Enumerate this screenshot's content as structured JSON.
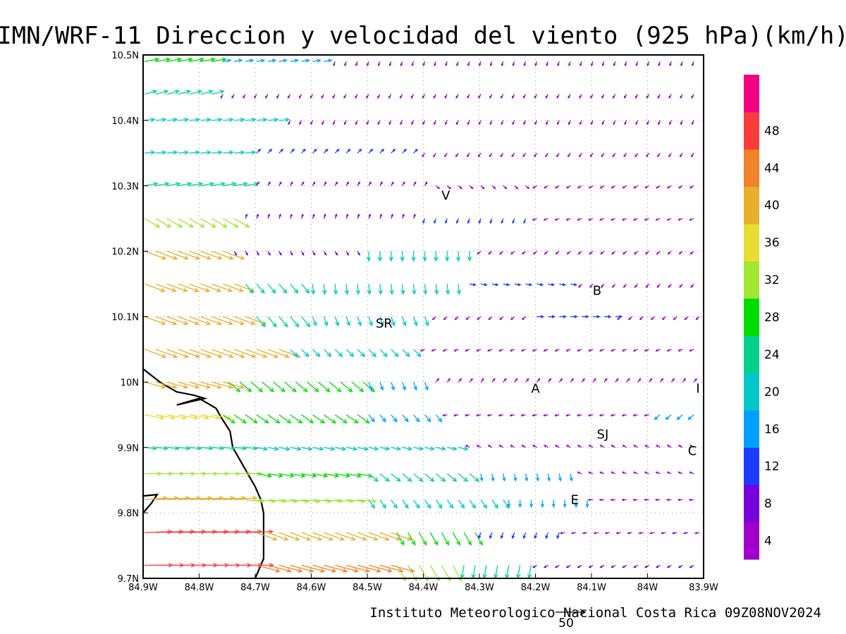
{
  "chart_data": {
    "type": "vector-field-map",
    "title": "IMN/WRF-11 Direccion y velocidad del viento (925 hPa)(km/h)",
    "credit": "Instituto Meteorologico Nacional Costa Rica 09Z08NOV2024",
    "reference_vector_label": "50",
    "reference_vector_kmh": 50,
    "lon_range": [
      -84.9,
      -83.9
    ],
    "lat_range": [
      9.7,
      10.5
    ],
    "x_ticks": [
      "84.9W",
      "84.8W",
      "84.7W",
      "84.6W",
      "84.5W",
      "84.4W",
      "84.3W",
      "84.2W",
      "84.1W",
      "84W",
      "83.9W"
    ],
    "y_ticks": [
      "9.7N",
      "9.8N",
      "9.9N",
      "10N",
      "10.1N",
      "10.2N",
      "10.3N",
      "10.4N",
      "10.5N"
    ],
    "grid": true,
    "colorbar": {
      "levels": [
        4,
        8,
        12,
        16,
        20,
        24,
        28,
        32,
        36,
        40,
        44,
        48
      ],
      "colors": [
        "#a000c8",
        "#7800dc",
        "#1e3cff",
        "#00a0ff",
        "#00c8c8",
        "#00d28c",
        "#00dc00",
        "#a0e632",
        "#e6dc32",
        "#e6af2d",
        "#f08228",
        "#fa3c3c",
        "#f00082"
      ]
    },
    "cities": [
      {
        "label": "V",
        "lon": -84.36,
        "lat": 10.285
      },
      {
        "label": "SR",
        "lon": -84.47,
        "lat": 10.09
      },
      {
        "label": "B",
        "lon": -84.09,
        "lat": 10.14
      },
      {
        "label": "A",
        "lon": -84.2,
        "lat": 9.99
      },
      {
        "label": "SJ",
        "lon": -84.08,
        "lat": 9.92
      },
      {
        "label": "I",
        "lon": -83.91,
        "lat": 9.99
      },
      {
        "label": "C",
        "lon": -83.92,
        "lat": 9.895
      },
      {
        "label": "E",
        "lon": -84.13,
        "lat": 9.82
      }
    ],
    "coastline": [
      [
        -84.9,
        10.02
      ],
      [
        -84.87,
        10.0
      ],
      [
        -84.84,
        9.985
      ],
      [
        -84.81,
        9.98
      ],
      [
        -84.79,
        9.975
      ],
      [
        -84.815,
        9.97
      ],
      [
        -84.84,
        9.965
      ],
      [
        -84.8,
        9.975
      ],
      [
        -84.77,
        9.96
      ],
      [
        -84.76,
        9.945
      ],
      [
        -84.745,
        9.925
      ],
      [
        -84.74,
        9.9
      ],
      [
        -84.72,
        9.87
      ],
      [
        -84.7,
        9.84
      ],
      [
        -84.69,
        9.82
      ],
      [
        -84.685,
        9.8
      ],
      [
        -84.685,
        9.76
      ],
      [
        -84.685,
        9.73
      ],
      [
        -84.7,
        9.7
      ]
    ],
    "coastline_spit": [
      [
        -84.9,
        9.8
      ],
      [
        -84.885,
        9.815
      ],
      [
        -84.875,
        9.828
      ],
      [
        -84.9,
        9.826
      ]
    ],
    "wind_rows": [
      {
        "lat": 10.49,
        "segments": [
          {
            "lon_from": -84.9,
            "lon_to": -84.76,
            "dir_deg": 80,
            "speed": 24
          },
          {
            "lon_from": -84.76,
            "lon_to": -84.56,
            "dir_deg": 80,
            "speed": 13
          },
          {
            "lon_from": -84.56,
            "lon_to": -83.9,
            "dir_deg": 200,
            "speed": 3
          }
        ]
      },
      {
        "lat": 10.44,
        "segments": [
          {
            "lon_from": -84.9,
            "lon_to": -84.76,
            "dir_deg": 75,
            "speed": 21
          },
          {
            "lon_from": -84.76,
            "lon_to": -83.9,
            "dir_deg": 210,
            "speed": 3
          }
        ]
      },
      {
        "lat": 10.4,
        "segments": [
          {
            "lon_from": -84.9,
            "lon_to": -84.64,
            "dir_deg": 85,
            "speed": 17
          },
          {
            "lon_from": -84.64,
            "lon_to": -83.9,
            "dir_deg": 205,
            "speed": 3
          }
        ]
      },
      {
        "lat": 10.35,
        "segments": [
          {
            "lon_from": -84.9,
            "lon_to": -84.7,
            "dir_deg": 85,
            "speed": 17
          },
          {
            "lon_from": -84.7,
            "lon_to": -84.4,
            "dir_deg": 45,
            "speed": 9
          },
          {
            "lon_from": -84.4,
            "lon_to": -83.9,
            "dir_deg": 215,
            "speed": 3
          }
        ]
      },
      {
        "lat": 10.3,
        "segments": [
          {
            "lon_from": -84.9,
            "lon_to": -84.7,
            "dir_deg": 80,
            "speed": 22
          },
          {
            "lon_from": -84.7,
            "lon_to": -84.38,
            "dir_deg": 30,
            "speed": 4
          },
          {
            "lon_from": -84.38,
            "lon_to": -84.2,
            "dir_deg": 130,
            "speed": 3
          },
          {
            "lon_from": -84.2,
            "lon_to": -83.9,
            "dir_deg": 240,
            "speed": 3
          }
        ]
      },
      {
        "lat": 10.25,
        "segments": [
          {
            "lon_from": -84.9,
            "lon_to": -84.72,
            "dir_deg": 120,
            "speed": 29
          },
          {
            "lon_from": -84.72,
            "lon_to": -84.4,
            "dir_deg": 20,
            "speed": 4
          },
          {
            "lon_from": -84.4,
            "lon_to": -84.2,
            "dir_deg": 200,
            "speed": 8
          },
          {
            "lon_from": -84.2,
            "lon_to": -83.9,
            "dir_deg": 250,
            "speed": 3
          }
        ]
      },
      {
        "lat": 10.2,
        "segments": [
          {
            "lon_from": -84.9,
            "lon_to": -84.74,
            "dir_deg": 110,
            "speed": 38
          },
          {
            "lon_from": -84.74,
            "lon_to": -84.5,
            "dir_deg": 150,
            "speed": 4
          },
          {
            "lon_from": -84.5,
            "lon_to": -84.3,
            "dir_deg": 180,
            "speed": 16
          },
          {
            "lon_from": -84.3,
            "lon_to": -83.9,
            "dir_deg": 230,
            "speed": 3
          }
        ]
      },
      {
        "lat": 10.15,
        "segments": [
          {
            "lon_from": -84.9,
            "lon_to": -84.72,
            "dir_deg": 110,
            "speed": 36
          },
          {
            "lon_from": -84.72,
            "lon_to": -84.6,
            "dir_deg": 140,
            "speed": 20
          },
          {
            "lon_from": -84.6,
            "lon_to": -84.32,
            "dir_deg": 175,
            "speed": 17
          },
          {
            "lon_from": -84.32,
            "lon_to": -84.12,
            "dir_deg": 100,
            "speed": 10
          },
          {
            "lon_from": -84.12,
            "lon_to": -83.9,
            "dir_deg": 220,
            "speed": 3
          }
        ]
      },
      {
        "lat": 10.1,
        "segments": [
          {
            "lon_from": -84.9,
            "lon_to": -84.7,
            "dir_deg": 110,
            "speed": 37
          },
          {
            "lon_from": -84.7,
            "lon_to": -84.6,
            "dir_deg": 140,
            "speed": 22
          },
          {
            "lon_from": -84.6,
            "lon_to": -84.38,
            "dir_deg": 160,
            "speed": 16
          },
          {
            "lon_from": -84.38,
            "lon_to": -84.2,
            "dir_deg": 230,
            "speed": 3
          },
          {
            "lon_from": -84.2,
            "lon_to": -84.05,
            "dir_deg": 90,
            "speed": 11
          },
          {
            "lon_from": -84.05,
            "lon_to": -83.9,
            "dir_deg": 230,
            "speed": 3
          }
        ]
      },
      {
        "lat": 10.05,
        "segments": [
          {
            "lon_from": -84.9,
            "lon_to": -84.64,
            "dir_deg": 110,
            "speed": 38
          },
          {
            "lon_from": -84.64,
            "lon_to": -84.4,
            "dir_deg": 135,
            "speed": 17
          },
          {
            "lon_from": -84.4,
            "lon_to": -83.9,
            "dir_deg": 250,
            "speed": 3
          }
        ]
      },
      {
        "lat": 10.0,
        "segments": [
          {
            "lon_from": -84.9,
            "lon_to": -84.75,
            "dir_deg": 105,
            "speed": 36
          },
          {
            "lon_from": -84.75,
            "lon_to": -84.5,
            "dir_deg": 130,
            "speed": 25
          },
          {
            "lon_from": -84.5,
            "lon_to": -84.38,
            "dir_deg": 160,
            "speed": 14
          },
          {
            "lon_from": -84.38,
            "lon_to": -83.9,
            "dir_deg": 40,
            "speed": 3
          }
        ]
      },
      {
        "lat": 9.95,
        "segments": [
          {
            "lon_from": -84.9,
            "lon_to": -84.76,
            "dir_deg": 100,
            "speed": 33
          },
          {
            "lon_from": -84.76,
            "lon_to": -84.5,
            "dir_deg": 125,
            "speed": 24
          },
          {
            "lon_from": -84.5,
            "lon_to": -84.36,
            "dir_deg": 140,
            "speed": 15
          },
          {
            "lon_from": -84.36,
            "lon_to": -83.98,
            "dir_deg": 260,
            "speed": 3
          },
          {
            "lon_from": -83.98,
            "lon_to": -83.9,
            "dir_deg": 230,
            "speed": 12
          }
        ]
      },
      {
        "lat": 9.9,
        "segments": [
          {
            "lon_from": -84.9,
            "lon_to": -84.7,
            "dir_deg": 95,
            "speed": 20
          },
          {
            "lon_from": -84.7,
            "lon_to": -84.5,
            "dir_deg": 100,
            "speed": 18
          },
          {
            "lon_from": -84.5,
            "lon_to": -84.32,
            "dir_deg": 100,
            "speed": 16
          },
          {
            "lon_from": -84.32,
            "lon_to": -83.9,
            "dir_deg": 300,
            "speed": 3
          }
        ]
      },
      {
        "lat": 9.86,
        "segments": [
          {
            "lon_from": -84.9,
            "lon_to": -84.7,
            "dir_deg": 90,
            "speed": 28
          },
          {
            "lon_from": -84.7,
            "lon_to": -84.5,
            "dir_deg": 100,
            "speed": 25
          },
          {
            "lon_from": -84.5,
            "lon_to": -84.3,
            "dir_deg": 130,
            "speed": 20
          },
          {
            "lon_from": -84.3,
            "lon_to": -84.12,
            "dir_deg": 170,
            "speed": 12
          },
          {
            "lon_from": -84.12,
            "lon_to": -83.9,
            "dir_deg": 290,
            "speed": 3
          }
        ]
      },
      {
        "lat": 9.82,
        "segments": [
          {
            "lon_from": -84.9,
            "lon_to": -84.72,
            "dir_deg": 85,
            "speed": 38
          },
          {
            "lon_from": -84.72,
            "lon_to": -84.5,
            "dir_deg": 95,
            "speed": 31
          },
          {
            "lon_from": -84.5,
            "lon_to": -84.25,
            "dir_deg": 145,
            "speed": 17
          },
          {
            "lon_from": -84.25,
            "lon_to": -84.1,
            "dir_deg": 180,
            "speed": 12
          },
          {
            "lon_from": -84.1,
            "lon_to": -83.9,
            "dir_deg": 270,
            "speed": 3
          }
        ]
      },
      {
        "lat": 9.77,
        "segments": [
          {
            "lon_from": -84.9,
            "lon_to": -84.7,
            "dir_deg": 88,
            "speed": 46
          },
          {
            "lon_from": -84.7,
            "lon_to": -84.45,
            "dir_deg": 110,
            "speed": 36
          },
          {
            "lon_from": -84.45,
            "lon_to": -84.3,
            "dir_deg": 150,
            "speed": 24
          },
          {
            "lon_from": -84.3,
            "lon_to": -84.15,
            "dir_deg": 200,
            "speed": 10
          },
          {
            "lon_from": -84.15,
            "lon_to": -83.9,
            "dir_deg": 260,
            "speed": 3
          }
        ]
      },
      {
        "lat": 9.72,
        "segments": [
          {
            "lon_from": -84.9,
            "lon_to": -84.7,
            "dir_deg": 90,
            "speed": 47
          },
          {
            "lon_from": -84.7,
            "lon_to": -84.45,
            "dir_deg": 105,
            "speed": 40
          },
          {
            "lon_from": -84.45,
            "lon_to": -84.33,
            "dir_deg": 150,
            "speed": 30
          },
          {
            "lon_from": -84.33,
            "lon_to": -84.2,
            "dir_deg": 190,
            "speed": 22
          },
          {
            "lon_from": -84.2,
            "lon_to": -83.9,
            "dir_deg": 240,
            "speed": 4
          }
        ]
      }
    ]
  }
}
